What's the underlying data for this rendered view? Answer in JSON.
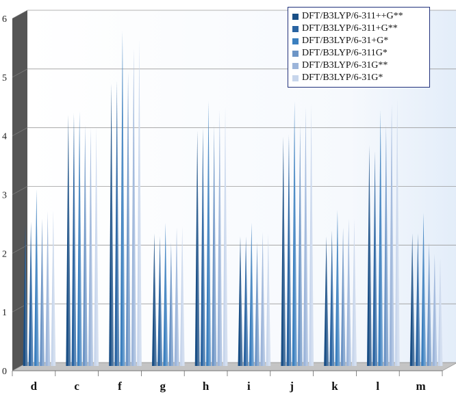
{
  "chart_data": {
    "type": "bar",
    "categories": [
      "d",
      "c",
      "f",
      "g",
      "h",
      "i",
      "j",
      "k",
      "l",
      "m"
    ],
    "ylim": [
      0,
      6
    ],
    "yticks": [
      "0",
      "1",
      "2",
      "3",
      "4",
      "5",
      "6"
    ],
    "grid": true,
    "legend_position": "top-right",
    "series": [
      {
        "name": "DFT/B3LYP/6-311++G**",
        "color": "#1a4f86",
        "values": [
          2.35,
          4.22,
          4.75,
          2.2,
          3.95,
          2.15,
          3.85,
          2.15,
          3.7,
          2.2
        ]
      },
      {
        "name": "DFT/B3LYP/6-311+G**",
        "color": "#2a64a2",
        "values": [
          2.4,
          4.25,
          4.8,
          2.15,
          4.0,
          2.15,
          3.88,
          2.25,
          3.6,
          2.2
        ]
      },
      {
        "name": "DFT/B3LYP/6-31+G*",
        "color": "#3b7fbf",
        "values": [
          2.95,
          4.28,
          5.65,
          2.38,
          4.45,
          2.38,
          4.45,
          2.6,
          4.3,
          2.55
        ]
      },
      {
        "name": "DFT/B3LYP/6-311G*",
        "color": "#6d95c6",
        "values": [
          2.45,
          4.05,
          4.95,
          2.05,
          4.05,
          2.05,
          4.05,
          2.3,
          4.05,
          2.05
        ]
      },
      {
        "name": "DFT/B3LYP/6-31G**",
        "color": "#9cb5da",
        "values": [
          2.58,
          4.0,
          5.35,
          2.3,
          4.3,
          2.22,
          4.35,
          2.45,
          4.4,
          1.85
        ]
      },
      {
        "name": "DFT/B3LYP/6-31G*",
        "color": "#c8d6ec",
        "values": [
          2.6,
          4.02,
          5.5,
          2.32,
          4.35,
          2.2,
          4.4,
          2.45,
          4.5,
          1.78
        ]
      }
    ]
  }
}
